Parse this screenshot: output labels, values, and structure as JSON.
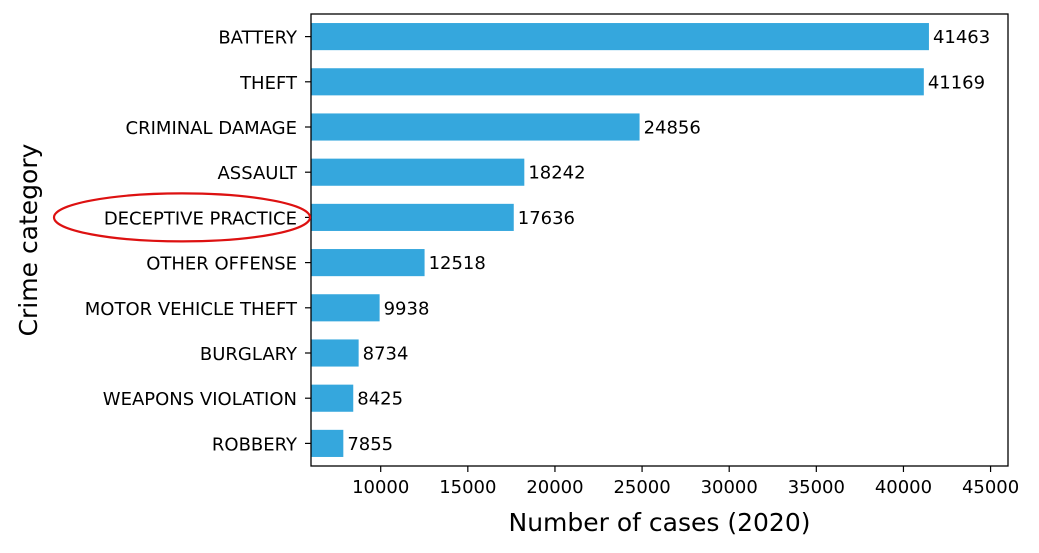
{
  "chart_data": {
    "type": "bar",
    "orientation": "horizontal",
    "title": "",
    "xlabel": "Number of cases (2020)",
    "ylabel": "Crime category",
    "categories": [
      "BATTERY",
      "THEFT",
      "CRIMINAL DAMAGE",
      "ASSAULT",
      "DECEPTIVE PRACTICE",
      "OTHER OFFENSE",
      "MOTOR VEHICLE THEFT",
      "BURGLARY",
      "WEAPONS VIOLATION",
      "ROBBERY"
    ],
    "values": [
      41463,
      41169,
      24856,
      18242,
      17636,
      12518,
      9938,
      8734,
      8425,
      7855
    ],
    "data_labels": [
      "41463",
      "41169",
      "24856",
      "18242",
      "17636",
      "12518",
      "9938",
      "8734",
      "8425",
      "7855"
    ],
    "xlim": [
      6000,
      46000
    ],
    "xticks": [
      10000,
      15000,
      20000,
      25000,
      30000,
      35000,
      40000,
      45000
    ],
    "xtick_labels": [
      "10000",
      "15000",
      "20000",
      "25000",
      "30000",
      "35000",
      "40000",
      "45000"
    ],
    "bar_color": "#35a7dd",
    "grid": false,
    "legend": "none",
    "annotation": {
      "type": "ellipse",
      "target": "DECEPTIVE PRACTICE",
      "color": "#dd1111"
    }
  }
}
